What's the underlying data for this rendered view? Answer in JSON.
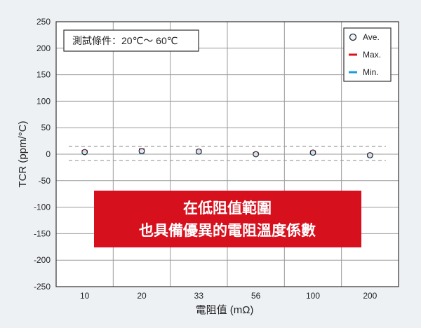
{
  "chart_data": {
    "type": "scatter",
    "xlabel": "電阻值 (mΩ)",
    "ylabel": "TCR (ppm/°C)",
    "categories": [
      "10",
      "20",
      "33",
      "56",
      "100",
      "200"
    ],
    "ylim": [
      -250,
      250
    ],
    "yticks": [
      250,
      200,
      150,
      100,
      50,
      0,
      -50,
      -100,
      -150,
      -200,
      -250
    ],
    "grid": true,
    "legend_position": "top-right",
    "condition_label": "測試條件：20℃～ 60℃",
    "reference_lines": [
      15,
      -12
    ],
    "series": [
      {
        "name": "Ave.",
        "marker": "circle",
        "values": [
          4,
          6,
          5,
          0,
          3,
          -2
        ]
      },
      {
        "name": "Max.",
        "marker": "dash",
        "values": [
          6,
          9,
          7,
          2,
          5,
          0
        ]
      },
      {
        "name": "Min.",
        "marker": "dash",
        "values": [
          3,
          3,
          3,
          -1,
          1,
          -4
        ]
      }
    ],
    "callout": {
      "line1": "在低阻值範圍",
      "line2": "也具備優異的電阻溫度係數"
    }
  },
  "colors": {
    "background": "#eef1f4",
    "plot_bg": "#ffffff",
    "grid": "#9a9a9a",
    "axis": "#333333",
    "ref_line": "#999999",
    "ave_face": "#f2f2f2",
    "ave_edge": "#1a2a3a",
    "max": "#e0101e",
    "min": "#1aa0d8",
    "callout_bg": "#d7101e",
    "callout_text": "#ffffff"
  }
}
